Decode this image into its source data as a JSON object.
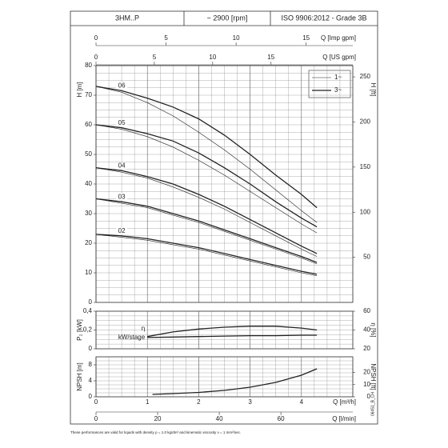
{
  "header": {
    "model": "3HM..P",
    "speed": "~ 2900 [rpm]",
    "standard": "ISO 9906:2012 - Grade 3B"
  },
  "footnote": "These performances are valid for liquids with density ρ = 1.0 kg/dm³ and kinematic viscosity ν = 1 mm²/sec.",
  "code": "06451_B_CH",
  "chart_data": [
    {
      "type": "line",
      "x": [
        0,
        0.5,
        1,
        1.5,
        2,
        2.5,
        3,
        3.5,
        4,
        4.3
      ],
      "xlim": [
        0,
        5
      ],
      "ylabel": "H [m]",
      "ylim": [
        0,
        80
      ],
      "yticks": [
        0,
        10,
        20,
        30,
        40,
        50,
        60,
        70,
        80
      ],
      "y2label": "H [ft]",
      "y2lim": [
        0,
        262.5
      ],
      "y2ticks": [
        50,
        100,
        150,
        200,
        250
      ],
      "phases": [
        "1~",
        "3~"
      ],
      "top_axes": [
        {
          "label": "Q [Imp gpm]",
          "xlim": [
            0,
            18.33
          ],
          "xticks": [
            0,
            5,
            10,
            15
          ]
        },
        {
          "label": "Q [US gpm]",
          "xlim": [
            0,
            22.01
          ],
          "xticks": [
            0,
            5,
            10,
            15
          ]
        }
      ],
      "series": [
        {
          "name": "06",
          "color": "#222222",
          "values": [
            73,
            71.5,
            69,
            66,
            62,
            56.5,
            50,
            43,
            36.5,
            32
          ],
          "values_1": [
            73,
            71,
            67.5,
            63,
            57.5,
            51.5,
            45,
            38,
            31,
            27
          ]
        },
        {
          "name": "05",
          "color": "#222222",
          "values": [
            60,
            59,
            57,
            54.5,
            50.5,
            45.5,
            40,
            34,
            28.5,
            25.5
          ],
          "values_1": [
            60,
            58.5,
            56,
            52.5,
            48,
            43,
            37.5,
            32,
            26.5,
            23.5
          ]
        },
        {
          "name": "04",
          "color": "#222222",
          "values": [
            45.5,
            44.5,
            42.5,
            40,
            36.5,
            32.5,
            28,
            23.5,
            19,
            16.5
          ],
          "values_1": [
            45.5,
            44,
            42,
            39,
            35.5,
            31.5,
            27,
            22.5,
            18,
            15.5
          ]
        },
        {
          "name": "03",
          "color": "#222222",
          "values": [
            35,
            34,
            32.5,
            30,
            27.5,
            24.5,
            21.5,
            18.5,
            15.5,
            13.5
          ],
          "values_1": [
            35,
            33.5,
            32,
            29.5,
            27,
            24,
            21,
            18,
            15,
            13
          ]
        },
        {
          "name": "02",
          "color": "#222222",
          "values": [
            23,
            22.5,
            21.5,
            20,
            18.5,
            16.5,
            14.5,
            12.5,
            10.5,
            9.5
          ],
          "values_1": [
            23,
            22,
            21,
            19.5,
            18,
            16,
            14,
            12,
            10,
            9
          ]
        }
      ]
    },
    {
      "type": "line",
      "x": [
        1,
        1.5,
        2,
        2.5,
        3,
        3.5,
        4,
        4.3
      ],
      "xlim": [
        0,
        5
      ],
      "ylabel": "P₂ [kW]",
      "ylim": [
        0,
        0.4
      ],
      "yticks": [
        0,
        {
          "value": 0.2,
          "label": "0,2"
        },
        {
          "value": 0.4,
          "label": "0,4"
        }
      ],
      "y2label": "η [%]",
      "y2lim": [
        20,
        60
      ],
      "y2ticks": [
        20,
        40,
        60
      ],
      "series": [
        {
          "name": "kW/stage",
          "color": "#222222",
          "values": [
            0.12,
            0.125,
            0.13,
            0.135,
            0.14,
            0.14,
            0.145,
            0.145
          ]
        },
        {
          "name": "η",
          "color": "#222222",
          "axis": "y2",
          "values": [
            33,
            38,
            41,
            43,
            44,
            44,
            42,
            40
          ]
        }
      ]
    },
    {
      "type": "line",
      "x": [
        1.1,
        1.5,
        2,
        2.5,
        3,
        3.5,
        4,
        4.3
      ],
      "xlim": [
        0,
        5
      ],
      "xlabel": "Q [m³/h]",
      "xticks": [
        0,
        1,
        2,
        3,
        4
      ],
      "ylabel": "NPSH [m]",
      "ylim": [
        0,
        10
      ],
      "yticks": [
        0,
        4,
        8
      ],
      "y2label": "NPSH [ft]",
      "y2lim": [
        0,
        32.81
      ],
      "y2ticks": [
        0,
        10,
        20
      ],
      "bottom_axes": [
        {
          "label": "Q [l/min]",
          "xlim": [
            0,
            83.33
          ],
          "xticks": [
            0,
            20,
            40,
            60
          ]
        }
      ],
      "series": [
        {
          "color": "#222222",
          "values": [
            0.6,
            0.8,
            1.1,
            1.6,
            2.4,
            3.6,
            5.4,
            7
          ]
        }
      ]
    }
  ]
}
